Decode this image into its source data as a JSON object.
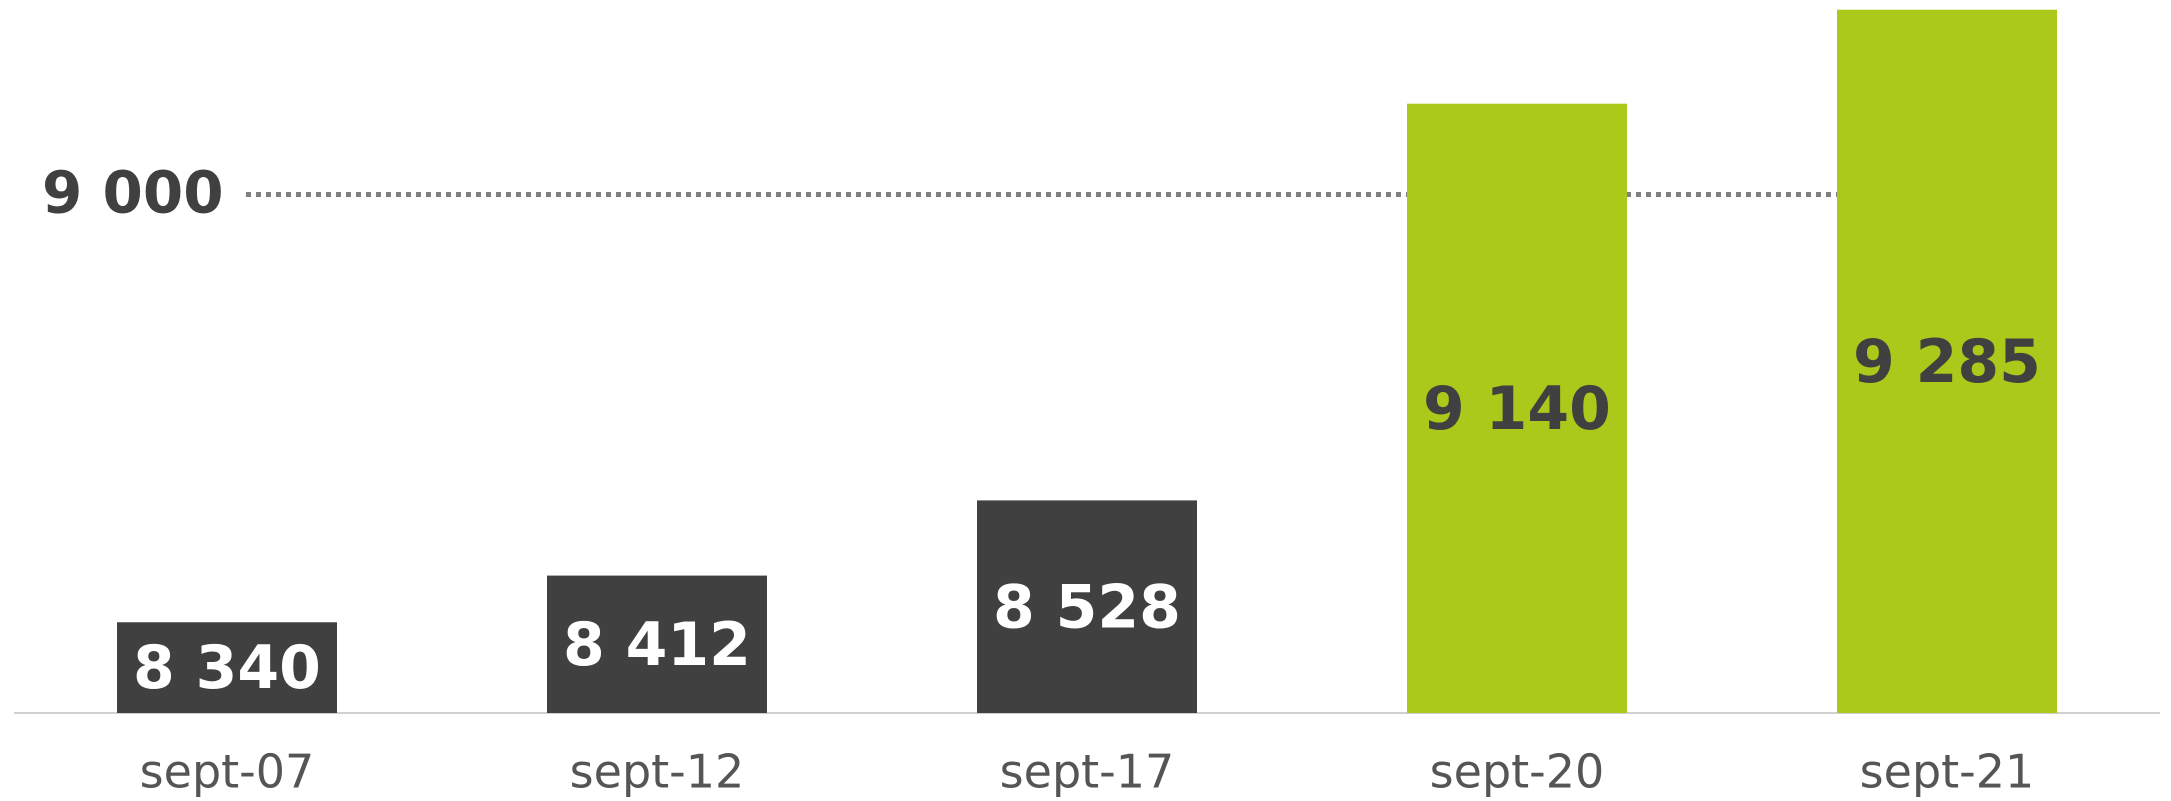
{
  "chart_data": {
    "type": "bar",
    "categories": [
      "sept-07",
      "sept-12",
      "sept-17",
      "sept-20",
      "sept-21"
    ],
    "values": [
      8340,
      8412,
      8528,
      9140,
      9285
    ],
    "value_labels": [
      "8 340",
      "8 412",
      "8 528",
      "9 140",
      "9 285"
    ],
    "colors": [
      "#404040",
      "#404040",
      "#404040",
      "#aac91a",
      "#aac91a"
    ],
    "ylim": [
      8200,
      9300
    ],
    "reference_line": {
      "value": 9000,
      "label": "9 000"
    }
  }
}
